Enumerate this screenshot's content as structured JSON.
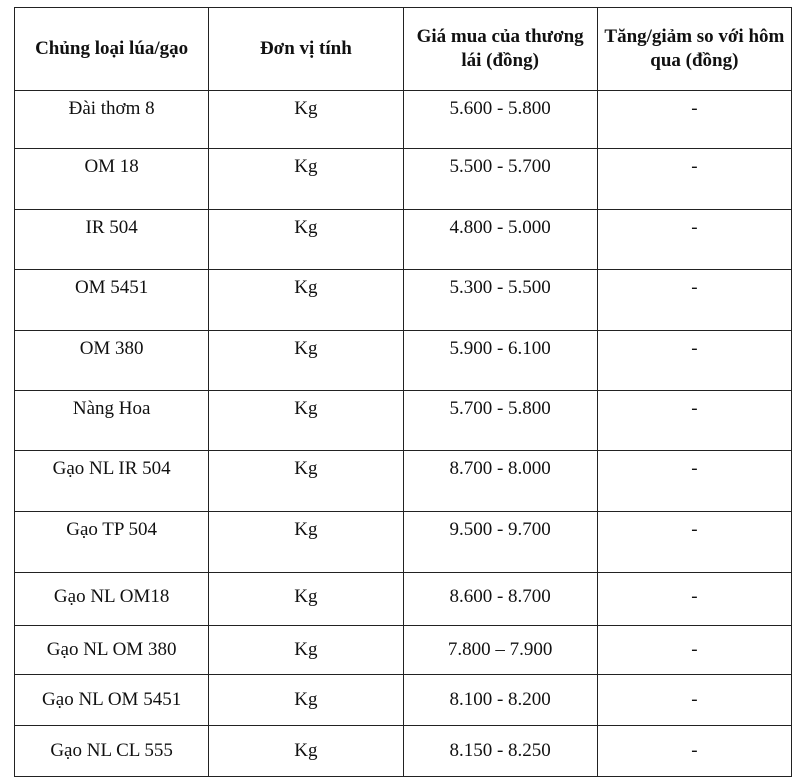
{
  "headers": [
    "Chủng loại lúa/gạo",
    "Đơn vị tính",
    "Giá mua của thương lái (đồng)",
    "Tăng/giảm so với hôm qua (đồng)"
  ],
  "rows": [
    [
      "Đài thơm 8",
      "Kg",
      "5.600 - 5.800",
      "-"
    ],
    [
      "OM 18",
      "Kg",
      "5.500 - 5.700",
      "-"
    ],
    [
      "IR 504",
      "Kg",
      "4.800 - 5.000",
      "-"
    ],
    [
      "OM 5451",
      "Kg",
      "5.300 - 5.500",
      "-"
    ],
    [
      "OM 380",
      "Kg",
      "5.900 - 6.100",
      "-"
    ],
    [
      "Nàng Hoa",
      "Kg",
      "5.700 - 5.800",
      "-"
    ],
    [
      "Gạo NL IR 504",
      "Kg",
      "8.700 - 8.000",
      "-"
    ],
    [
      "Gạo TP 504",
      "Kg",
      "9.500 - 9.700",
      "-"
    ],
    [
      "Gạo NL OM18",
      "Kg",
      "8.600 - 8.700",
      "-"
    ],
    [
      "Gạo NL OM 380",
      "Kg",
      "7.800 – 7.900",
      "-"
    ],
    [
      "Gạo NL OM 5451",
      "Kg",
      "8.100 - 8.200",
      "-"
    ],
    [
      "Gạo NL CL 555",
      "Kg",
      "8.150 - 8.250",
      "-"
    ]
  ]
}
